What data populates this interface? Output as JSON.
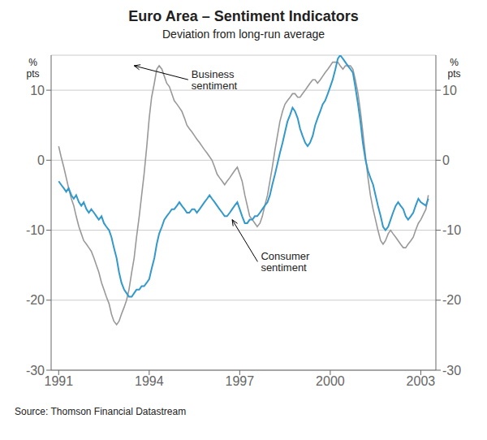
{
  "chart_data": {
    "type": "line",
    "title": "Euro Area – Sentiment Indicators",
    "subtitle": "Deviation from long-run average",
    "source": "Source: Thomson Financial Datastream",
    "ylabel": "%\npts",
    "y2label": "%\npts",
    "xlim": [
      1990.75,
      2003.5
    ],
    "xticks": [
      1991,
      1994,
      1997,
      2000,
      2003
    ],
    "ylim": [
      -30,
      15
    ],
    "yticks": [
      -30,
      -20,
      -10,
      0,
      10
    ],
    "y2lim": [
      -30,
      15
    ],
    "y2ticks": [
      -30,
      -20,
      -10,
      0,
      10
    ],
    "grid": true,
    "x": [
      1991.0,
      1991.08,
      1991.17,
      1991.25,
      1991.33,
      1991.42,
      1991.5,
      1991.58,
      1991.67,
      1991.75,
      1991.83,
      1991.92,
      1992.0,
      1992.08,
      1992.17,
      1992.25,
      1992.33,
      1992.42,
      1992.5,
      1992.58,
      1992.67,
      1992.75,
      1992.83,
      1992.92,
      1993.0,
      1993.08,
      1993.17,
      1993.25,
      1993.33,
      1993.42,
      1993.5,
      1993.58,
      1993.67,
      1993.75,
      1993.83,
      1993.92,
      1994.0,
      1994.08,
      1994.17,
      1994.25,
      1994.33,
      1994.42,
      1994.5,
      1994.58,
      1994.67,
      1994.75,
      1994.83,
      1994.92,
      1995.0,
      1995.08,
      1995.17,
      1995.25,
      1995.33,
      1995.42,
      1995.5,
      1995.58,
      1995.67,
      1995.75,
      1995.83,
      1995.92,
      1996.0,
      1996.08,
      1996.17,
      1996.25,
      1996.33,
      1996.42,
      1996.5,
      1996.58,
      1996.67,
      1996.75,
      1996.83,
      1996.92,
      1997.0,
      1997.08,
      1997.17,
      1997.25,
      1997.33,
      1997.42,
      1997.5,
      1997.58,
      1997.67,
      1997.75,
      1997.83,
      1997.92,
      1998.0,
      1998.08,
      1998.17,
      1998.25,
      1998.33,
      1998.42,
      1998.5,
      1998.58,
      1998.67,
      1998.75,
      1998.83,
      1998.92,
      1999.0,
      1999.08,
      1999.17,
      1999.25,
      1999.33,
      1999.42,
      1999.5,
      1999.58,
      1999.67,
      1999.75,
      1999.83,
      1999.92,
      2000.0,
      2000.08,
      2000.17,
      2000.25,
      2000.33,
      2000.42,
      2000.5,
      2000.58,
      2000.67,
      2000.75,
      2000.83,
      2000.92,
      2001.0,
      2001.08,
      2001.17,
      2001.25,
      2001.33,
      2001.42,
      2001.5,
      2001.58,
      2001.67,
      2001.75,
      2001.83,
      2001.92,
      2002.0,
      2002.08,
      2002.17,
      2002.25,
      2002.33,
      2002.42,
      2002.5,
      2002.58,
      2002.67,
      2002.75,
      2002.83,
      2002.92,
      2003.0,
      2003.17,
      2003.25
    ],
    "series": [
      {
        "color": "#999999",
        "values": [
          2.0,
          0.5,
          -1.0,
          -2.5,
          -4.0,
          -5.5,
          -6.5,
          -8.0,
          -9.5,
          -10.5,
          -11.5,
          -12.0,
          -12.5,
          -13.0,
          -14.0,
          -15.0,
          -16.0,
          -17.5,
          -18.5,
          -19.5,
          -20.5,
          -22.0,
          -23.0,
          -23.5,
          -23.0,
          -22.0,
          -21.0,
          -20.0,
          -18.5,
          -16.0,
          -14.0,
          -11.0,
          -8.0,
          -5.0,
          -2.0,
          2.0,
          6.0,
          9.0,
          11.0,
          13.0,
          13.5,
          13.0,
          12.0,
          11.0,
          10.5,
          9.5,
          8.5,
          8.0,
          7.5,
          7.0,
          6.0,
          5.0,
          4.5,
          4.0,
          3.5,
          3.0,
          2.5,
          2.0,
          1.5,
          1.0,
          0.5,
          0.0,
          -1.0,
          -2.0,
          -2.5,
          -3.0,
          -3.5,
          -3.0,
          -2.5,
          -2.0,
          -1.5,
          -1.0,
          -2.0,
          -3.0,
          -5.0,
          -6.5,
          -8.0,
          -8.5,
          -9.0,
          -9.5,
          -9.0,
          -8.0,
          -6.5,
          -5.0,
          -3.0,
          -1.0,
          1.5,
          3.5,
          5.5,
          7.0,
          8.0,
          8.5,
          9.0,
          9.5,
          9.5,
          9.0,
          9.0,
          9.5,
          10.0,
          10.5,
          11.0,
          11.5,
          11.5,
          11.0,
          11.5,
          12.0,
          12.5,
          13.0,
          13.5,
          14.0,
          14.0,
          14.0,
          13.5,
          13.0,
          13.5,
          13.5,
          13.5,
          13.0,
          11.5,
          9.5,
          7.0,
          4.0,
          0.5,
          -2.5,
          -5.0,
          -7.0,
          -8.5,
          -10.0,
          -11.5,
          -12.0,
          -11.5,
          -10.5,
          -10.0,
          -10.5,
          -11.0,
          -11.5,
          -12.0,
          -12.5,
          -12.5,
          -12.0,
          -11.5,
          -11.0,
          -10.0,
          -9.0,
          -8.5,
          -7.0,
          -5.0
        ]
      },
      {
        "color": "#3399cc",
        "values": [
          -3.0,
          -3.5,
          -4.0,
          -4.5,
          -4.0,
          -5.0,
          -5.5,
          -5.0,
          -6.0,
          -6.5,
          -6.0,
          -7.0,
          -7.5,
          -7.0,
          -7.5,
          -8.0,
          -8.5,
          -8.0,
          -9.0,
          -9.5,
          -10.0,
          -11.0,
          -12.5,
          -14.0,
          -16.0,
          -17.5,
          -18.5,
          -19.0,
          -19.5,
          -19.5,
          -19.0,
          -18.5,
          -18.5,
          -18.0,
          -18.0,
          -17.5,
          -17.0,
          -15.5,
          -14.0,
          -12.0,
          -10.5,
          -9.5,
          -8.5,
          -8.0,
          -7.5,
          -7.0,
          -7.0,
          -6.5,
          -6.0,
          -6.5,
          -7.0,
          -7.5,
          -7.5,
          -7.0,
          -7.0,
          -7.5,
          -7.0,
          -6.5,
          -6.0,
          -5.5,
          -5.0,
          -5.5,
          -6.0,
          -6.5,
          -7.0,
          -7.5,
          -8.0,
          -8.0,
          -7.5,
          -7.0,
          -6.5,
          -6.0,
          -7.0,
          -8.0,
          -9.0,
          -9.0,
          -8.5,
          -8.5,
          -8.0,
          -8.0,
          -7.5,
          -7.0,
          -6.5,
          -6.0,
          -5.0,
          -3.5,
          -2.0,
          -0.5,
          1.0,
          2.5,
          4.0,
          5.5,
          6.5,
          7.5,
          7.0,
          6.0,
          4.5,
          3.5,
          2.5,
          2.0,
          2.5,
          3.5,
          5.0,
          6.0,
          7.0,
          8.0,
          8.5,
          9.5,
          10.5,
          11.5,
          13.0,
          14.5,
          15.0,
          14.5,
          14.0,
          13.5,
          13.0,
          12.5,
          10.5,
          8.0,
          5.5,
          2.5,
          0.0,
          -1.5,
          -2.5,
          -3.5,
          -5.0,
          -6.5,
          -8.0,
          -9.5,
          -10.0,
          -9.5,
          -8.5,
          -7.5,
          -6.5,
          -6.0,
          -6.5,
          -7.0,
          -8.0,
          -8.5,
          -8.0,
          -7.5,
          -6.5,
          -5.5,
          -6.0,
          -6.5,
          -5.5
        ]
      }
    ],
    "annotations": [
      {
        "text": "Business\nsentiment",
        "x": 1993.5,
        "y": 13.5,
        "text_x": 1995.4,
        "text_y": 11.5
      },
      {
        "text": "Consumer\nsentiment",
        "x": 1996.75,
        "y": -8.5,
        "text_x": 1997.7,
        "text_y": -14.5
      }
    ]
  }
}
